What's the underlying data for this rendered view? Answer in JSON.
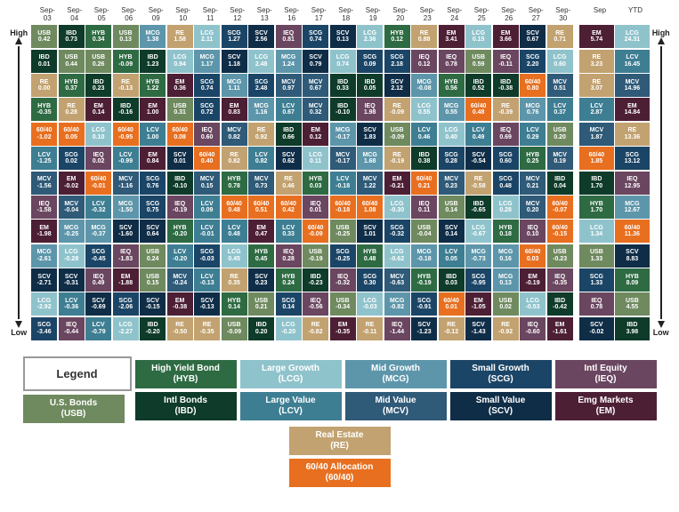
{
  "colors": {
    "USB": "#6f8a5f",
    "HYB": "#2e6b43",
    "IBD": "#0e3b2a",
    "LCG": "#8fc3cc",
    "LCV": "#3e7e93",
    "MCG": "#5d96aa",
    "MCV": "#2f5a78",
    "SCG": "#1b4566",
    "SCV": "#0f2d47",
    "IEQ": "#6a4660",
    "EM": "#4d1f35",
    "RE": "#c2a270",
    "60/40": "#e86f1f",
    "text_light": "#ffffff"
  },
  "headers": [
    "Sep-03",
    "Sep-04",
    "Sep-05",
    "Sep-06",
    "Sep-09",
    "Sep-10",
    "Sep-11",
    "Sep-12",
    "Sep-13",
    "Sep-16",
    "Sep-17",
    "Sep-18",
    "Sep-19",
    "Sep-20",
    "Sep-23",
    "Sep-24",
    "Sep-25",
    "Sep-26",
    "Sep-27",
    "Sep-30"
  ],
  "summary_headers": [
    "Sep",
    "YTD"
  ],
  "axis": {
    "high": "High",
    "low": "Low"
  },
  "columns": [
    [
      [
        "USB",
        "0.42"
      ],
      [
        "IBD",
        "0.01"
      ],
      [
        "RE",
        "0.00"
      ],
      [
        "HYB",
        "-0.35"
      ],
      [
        "60/40",
        "-1.02"
      ],
      [
        "LCV",
        "-1.25"
      ],
      [
        "MCV",
        "-1.56"
      ],
      [
        "IEQ",
        "-1.58"
      ],
      [
        "EM",
        "-1.98"
      ],
      [
        "MCG",
        "-2.61"
      ],
      [
        "SCV",
        "-2.71"
      ],
      [
        "LCG",
        "-2.92"
      ],
      [
        "SCG",
        "-3.46"
      ]
    ],
    [
      [
        "IBD",
        "0.73"
      ],
      [
        "USB",
        "0.44"
      ],
      [
        "HYB",
        "0.37"
      ],
      [
        "RE",
        "0.28"
      ],
      [
        "60/40",
        "0.05"
      ],
      [
        "SCG",
        "0.02"
      ],
      [
        "EM",
        "-0.02"
      ],
      [
        "MCV",
        "-0.04"
      ],
      [
        "MCG",
        "-0.25"
      ],
      [
        "LCG",
        "-0.28"
      ],
      [
        "SCV",
        "-0.31"
      ],
      [
        "LCV",
        "-0.36"
      ],
      [
        "IEQ",
        "-0.44"
      ]
    ],
    [
      [
        "HYB",
        "0.34"
      ],
      [
        "USB",
        "0.26"
      ],
      [
        "IBD",
        "0.23"
      ],
      [
        "EM",
        "0.14"
      ],
      [
        "LCG",
        "0.10"
      ],
      [
        "IEQ",
        "0.02"
      ],
      [
        "60/40",
        "-0.01"
      ],
      [
        "LCV",
        "-0.32"
      ],
      [
        "MCG",
        "-0.37"
      ],
      [
        "SCG",
        "-0.45"
      ],
      [
        "IEQ",
        "0.49"
      ],
      [
        "SCV",
        "-0.69"
      ],
      [
        "LCV",
        "-0.79"
      ]
    ],
    [
      [
        "USB",
        "0.13"
      ],
      [
        "HYB",
        "-0.09"
      ],
      [
        "RE",
        "-0.13"
      ],
      [
        "IBD",
        "-0.16"
      ],
      [
        "60/40",
        "-0.95"
      ],
      [
        "LCV",
        "-0.99"
      ],
      [
        "MCV",
        "-1.16"
      ],
      [
        "MCG",
        "-1.50"
      ],
      [
        "SCV",
        "-1.60"
      ],
      [
        "IEQ",
        "-1.83"
      ],
      [
        "EM",
        "-1.88"
      ],
      [
        "SCG",
        "-2.06"
      ],
      [
        "LCG",
        "-2.27"
      ]
    ],
    [
      [
        "MCG",
        "1.38"
      ],
      [
        "IBD",
        "1.23"
      ],
      [
        "HYB",
        "1.22"
      ],
      [
        "EM",
        "1.00"
      ],
      [
        "LCV",
        "1.00"
      ],
      [
        "EM",
        "0.84"
      ],
      [
        "SCG",
        "0.76"
      ],
      [
        "SCG",
        "0.75"
      ],
      [
        "SCV",
        "0.64"
      ],
      [
        "USB",
        "0.24"
      ],
      [
        "USB",
        "0.15"
      ],
      [
        "SCV",
        "-0.15"
      ],
      [
        "IBD",
        "-0.20"
      ]
    ],
    [
      [
        "RE",
        "1.58"
      ],
      [
        "LCG",
        "0.94"
      ],
      [
        "EM",
        "0.36"
      ],
      [
        "USB",
        "0.31"
      ],
      [
        "60/40",
        "0.08"
      ],
      [
        "SCV",
        "0.01"
      ],
      [
        "IBD",
        "-0.10"
      ],
      [
        "IEQ",
        "-0.19"
      ],
      [
        "HYB",
        "-0.20"
      ],
      [
        "LCV",
        "-0.20"
      ],
      [
        "MCV",
        "-0.24"
      ],
      [
        "EM",
        "-0.38"
      ],
      [
        "RE",
        "-0.50"
      ]
    ],
    [
      [
        "LCG",
        "2.11"
      ],
      [
        "MCG",
        "1.17"
      ],
      [
        "SCG",
        "0.74"
      ],
      [
        "SCG",
        "0.72"
      ],
      [
        "IEQ",
        "0.60"
      ],
      [
        "60/40",
        "0.40"
      ],
      [
        "MCV",
        "0.15"
      ],
      [
        "LCV",
        "0.09"
      ],
      [
        "LCV",
        "-0.01"
      ],
      [
        "SCG",
        "-0.03"
      ],
      [
        "LCV",
        "-0.13"
      ],
      [
        "SCV",
        "-0.13"
      ],
      [
        "RE",
        "-0.35"
      ]
    ],
    [
      [
        "SCG",
        "1.27"
      ],
      [
        "SCV",
        "1.18"
      ],
      [
        "MCG",
        "1.11"
      ],
      [
        "EM",
        "0.83"
      ],
      [
        "MCV",
        "0.82"
      ],
      [
        "RE",
        "0.82"
      ],
      [
        "HYB",
        "0.78"
      ],
      [
        "60/40",
        "0.48"
      ],
      [
        "LCV",
        "0.48"
      ],
      [
        "LCG",
        "0.45"
      ],
      [
        "RE",
        "0.35"
      ],
      [
        "HYB",
        "0.14"
      ],
      [
        "USB",
        "-0.09"
      ]
    ],
    [
      [
        "SCV",
        "2.56"
      ],
      [
        "LCG",
        "2.48"
      ],
      [
        "SCG",
        "2.48"
      ],
      [
        "MCG",
        "1.16"
      ],
      [
        "RE",
        "0.92"
      ],
      [
        "LCV",
        "0.82"
      ],
      [
        "MCV",
        "0.73"
      ],
      [
        "60/40",
        "0.51"
      ],
      [
        "EM",
        "0.47"
      ],
      [
        "HYB",
        "0.45"
      ],
      [
        "SCV",
        "0.23"
      ],
      [
        "USB",
        "0.21"
      ],
      [
        "IBD",
        "0.20"
      ]
    ],
    [
      [
        "IEQ",
        "0.81"
      ],
      [
        "MCG",
        "1.24"
      ],
      [
        "MCV",
        "0.97"
      ],
      [
        "LCV",
        "0.67"
      ],
      [
        "IBD",
        "0.66"
      ],
      [
        "SCV",
        "0.62"
      ],
      [
        "RE",
        "0.46"
      ],
      [
        "60/40",
        "0.42"
      ],
      [
        "LCV",
        "0.33"
      ],
      [
        "IEQ",
        "0.28"
      ],
      [
        "HYB",
        "0.24"
      ],
      [
        "SCG",
        "0.14"
      ],
      [
        "LCG",
        "-0.20"
      ]
    ],
    [
      [
        "SCG",
        "0.74"
      ],
      [
        "SCV",
        "0.79"
      ],
      [
        "MCV",
        "0.67"
      ],
      [
        "MCV",
        "0.32"
      ],
      [
        "EM",
        "0.12"
      ],
      [
        "LCG",
        "0.11"
      ],
      [
        "HYB",
        "0.03"
      ],
      [
        "IEQ",
        "0.01"
      ],
      [
        "60/40",
        "-0.09"
      ],
      [
        "USB",
        "-0.19"
      ],
      [
        "IBD",
        "-0.23"
      ],
      [
        "IEQ",
        "-0.56"
      ],
      [
        "RE",
        "-0.82"
      ]
    ],
    [
      [
        "SCV",
        "0.13"
      ],
      [
        "LCG",
        "0.74"
      ],
      [
        "IBD",
        "0.33"
      ],
      [
        "IBD",
        "-0.10"
      ],
      [
        "MCG",
        "-0.17"
      ],
      [
        "MCV",
        "-0.17"
      ],
      [
        "LCV",
        "-0.18"
      ],
      [
        "60/40",
        "-0.18"
      ],
      [
        "USB",
        "-0.25"
      ],
      [
        "SCG",
        "-0.25"
      ],
      [
        "IEQ",
        "-0.32"
      ],
      [
        "USB",
        "-0.34"
      ],
      [
        "EM",
        "-0.35"
      ]
    ],
    [
      [
        "LCG",
        "2.36"
      ],
      [
        "SCG",
        "0.09"
      ],
      [
        "IBD",
        "0.05"
      ],
      [
        "IEQ",
        "1.98"
      ],
      [
        "SCV",
        "1.83"
      ],
      [
        "MCG",
        "1.68"
      ],
      [
        "MCV",
        "1.22"
      ],
      [
        "60/40",
        "1.08"
      ],
      [
        "SCV",
        "1.01"
      ],
      [
        "HYB",
        "0.48"
      ],
      [
        "SCG",
        "0.30"
      ],
      [
        "LCG",
        "-0.03"
      ],
      [
        "RE",
        "-0.11"
      ]
    ],
    [
      [
        "HYB",
        "0.12"
      ],
      [
        "SCG",
        "2.18"
      ],
      [
        "SCV",
        "2.12"
      ],
      [
        "RE",
        "-0.09"
      ],
      [
        "USB",
        "-0.09"
      ],
      [
        "RE",
        "-0.19"
      ],
      [
        "EM",
        "-0.21"
      ],
      [
        "LCG",
        "-0.30"
      ],
      [
        "SCG",
        "-0.32"
      ],
      [
        "LCG",
        "-0.62"
      ],
      [
        "MCV",
        "-0.63"
      ],
      [
        "MCG",
        "-0.82"
      ],
      [
        "IEQ",
        "-1.44"
      ]
    ],
    [
      [
        "RE",
        "0.88"
      ],
      [
        "IEQ",
        "0.12"
      ],
      [
        "MCG",
        "-0.08"
      ],
      [
        "LCG",
        "0.55"
      ],
      [
        "LCV",
        "0.46"
      ],
      [
        "IBD",
        "0.38"
      ],
      [
        "60/40",
        "0.21"
      ],
      [
        "IEQ",
        "0.11"
      ],
      [
        "USB",
        "-0.04"
      ],
      [
        "MCG",
        "-0.18"
      ],
      [
        "HYB",
        "-0.19"
      ],
      [
        "SCG",
        "-0.91"
      ],
      [
        "SCV",
        "-1.23"
      ]
    ],
    [
      [
        "EM",
        "3.41"
      ],
      [
        "IEQ",
        "0.78"
      ],
      [
        "HYB",
        "0.56"
      ],
      [
        "MCG",
        "0.55"
      ],
      [
        "LCG",
        "0.40"
      ],
      [
        "SCG",
        "0.28"
      ],
      [
        "MCV",
        "0.23"
      ],
      [
        "USB",
        "0.14"
      ],
      [
        "SCV",
        "0.14"
      ],
      [
        "LCV",
        "0.05"
      ],
      [
        "IBD",
        "0.03"
      ],
      [
        "60/40",
        "0.01"
      ],
      [
        "RE",
        "-0.12"
      ]
    ],
    [
      [
        "LCG",
        "0.15"
      ],
      [
        "USB",
        "0.59"
      ],
      [
        "IBD",
        "0.52"
      ],
      [
        "60/40",
        "0.48"
      ],
      [
        "LCV",
        "0.49"
      ],
      [
        "SCV",
        "-0.54"
      ],
      [
        "RE",
        "-0.58"
      ],
      [
        "IBD",
        "-0.65"
      ],
      [
        "LCG",
        "-0.67"
      ],
      [
        "MCG",
        "-0.73"
      ],
      [
        "SCG",
        "-0.95"
      ],
      [
        "EM",
        "-1.05"
      ],
      [
        "SCV",
        "-1.43"
      ]
    ],
    [
      [
        "EM",
        "3.66"
      ],
      [
        "IEQ",
        "-0.11"
      ],
      [
        "IBD",
        "-0.38"
      ],
      [
        "RE",
        "-0.39"
      ],
      [
        "IEQ",
        "0.69"
      ],
      [
        "SCG",
        "0.60"
      ],
      [
        "SCG",
        "0.48"
      ],
      [
        "LCG",
        "0.28"
      ],
      [
        "HYB",
        "0.18"
      ],
      [
        "MCG",
        "0.16"
      ],
      [
        "MCG",
        "0.13"
      ],
      [
        "USB",
        "0.02"
      ],
      [
        "RE",
        "-0.92"
      ]
    ],
    [
      [
        "SCV",
        "0.67"
      ],
      [
        "SCG",
        "2.20"
      ],
      [
        "60/40",
        "0.80"
      ],
      [
        "MCG",
        "0.76"
      ],
      [
        "LCV",
        "0.29"
      ],
      [
        "HYB",
        "0.25"
      ],
      [
        "MCV",
        "0.21"
      ],
      [
        "MCV",
        "0.20"
      ],
      [
        "IEQ",
        "0.10"
      ],
      [
        "60/40",
        "0.03"
      ],
      [
        "EM",
        "-0.19"
      ],
      [
        "LCG",
        "-0.53"
      ],
      [
        "IEQ",
        "-0.60"
      ]
    ],
    [
      [
        "RE",
        "0.71"
      ],
      [
        "LCG",
        "0.60"
      ],
      [
        "MCV",
        "0.51"
      ],
      [
        "LCV",
        "0.37"
      ],
      [
        "USB",
        "0.20"
      ],
      [
        "MCV",
        "0.19"
      ],
      [
        "IBD",
        "0.04"
      ],
      [
        "60/40",
        "-0.07"
      ],
      [
        "60/40",
        "-0.15"
      ],
      [
        "USB",
        "-0.23"
      ],
      [
        "IEQ",
        "-0.35"
      ],
      [
        "IBD",
        "-0.42"
      ],
      [
        "EM",
        "-1.61"
      ]
    ]
  ],
  "summary": [
    [
      [
        "EM",
        "5.74"
      ],
      [
        "RE",
        "3.23"
      ],
      [
        "RE",
        "3.07"
      ],
      [
        "LCV",
        "2.87"
      ],
      [
        "MCV",
        "1.87"
      ],
      [
        "60/40",
        "1.85"
      ],
      [
        "IBD",
        "1.70"
      ],
      [
        "HYB",
        "1.70"
      ],
      [
        "LCG",
        "1.34"
      ],
      [
        "USB",
        "1.33"
      ],
      [
        "SCG",
        "1.33"
      ],
      [
        "IEQ",
        "0.78"
      ],
      [
        "SCV",
        "-0.02"
      ]
    ],
    [
      [
        "LCG",
        "24.31"
      ],
      [
        "LCV",
        "16.45"
      ],
      [
        "MCV",
        "14.96"
      ],
      [
        "EM",
        "14.84"
      ],
      [
        "RE",
        "13.36"
      ],
      [
        "SCG",
        "13.12"
      ],
      [
        "IEQ",
        "12.95"
      ],
      [
        "MCG",
        "12.67"
      ],
      [
        "60/40",
        "11.36"
      ],
      [
        "SCV",
        "8.83"
      ],
      [
        "HYB",
        "8.09"
      ],
      [
        "USB",
        "4.55"
      ],
      [
        "IBD",
        "3.98"
      ]
    ]
  ],
  "legend": {
    "title": "Legend",
    "rows": [
      [
        [
          "U.S. Bonds",
          "(USB)",
          "USB"
        ]
      ],
      [
        [
          "High Yield Bond",
          "(HYB)",
          "HYB"
        ],
        [
          "Intl Bonds",
          "(IBD)",
          "IBD"
        ]
      ],
      [
        [
          "Large Growth",
          "(LCG)",
          "LCG"
        ],
        [
          "Large Value",
          "(LCV)",
          "LCV"
        ]
      ],
      [
        [
          "Mid Growth",
          "(MCG)",
          "MCG"
        ],
        [
          "Mid Value",
          "(MCV)",
          "MCV"
        ]
      ],
      [
        [
          "Small Growth",
          "(SCG)",
          "SCG"
        ],
        [
          "Small Value",
          "(SCV)",
          "SCV"
        ]
      ],
      [
        [
          "Intl Equity",
          "(IEQ)",
          "IEQ"
        ],
        [
          "Emg Markets",
          "(EM)",
          "EM"
        ]
      ],
      [
        [
          "Real Estate",
          "(RE)",
          "RE"
        ],
        [
          "60/40 Allocation",
          "(60/40)",
          "60/40"
        ]
      ]
    ]
  }
}
